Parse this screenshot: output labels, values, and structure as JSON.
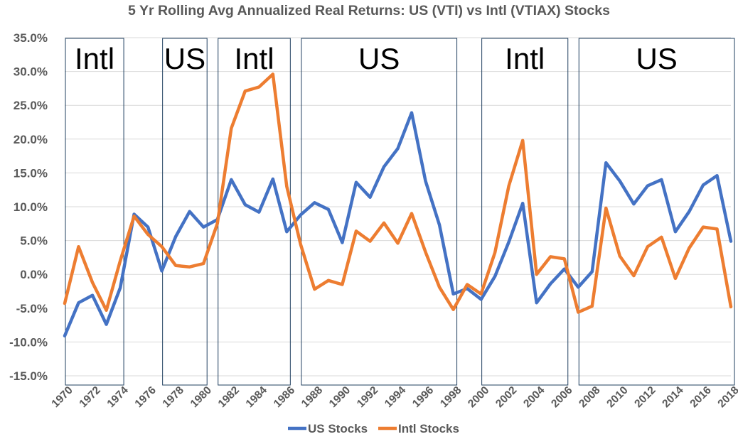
{
  "chart_data": {
    "type": "line",
    "title": "5 Yr Rolling Avg Annualized Real Returns: US (VTI) vs Intl (VTIAX) Stocks",
    "x": [
      1970,
      1971,
      1972,
      1973,
      1974,
      1975,
      1976,
      1977,
      1978,
      1979,
      1980,
      1981,
      1982,
      1983,
      1984,
      1985,
      1986,
      1987,
      1988,
      1989,
      1990,
      1991,
      1992,
      1993,
      1994,
      1995,
      1996,
      1997,
      1998,
      1999,
      2000,
      2001,
      2002,
      2003,
      2004,
      2005,
      2006,
      2007,
      2008,
      2009,
      2010,
      2011,
      2012,
      2013,
      2014,
      2015,
      2016,
      2017,
      2018
    ],
    "x_tick_labels": [
      "1970",
      "1972",
      "1974",
      "1976",
      "1978",
      "1980",
      "1982",
      "1984",
      "1986",
      "1988",
      "1990",
      "1992",
      "1994",
      "1996",
      "1998",
      "2000",
      "2002",
      "2004",
      "2006",
      "2008",
      "2010",
      "2012",
      "2014",
      "2016",
      "2018"
    ],
    "y_tick_labels": [
      "35.0%",
      "30.0%",
      "25.0%",
      "20.0%",
      "15.0%",
      "10.0%",
      "5.0%",
      "0.0%",
      "-5.0%",
      "-10.0%",
      "-15.0%"
    ],
    "ylim": [
      -15,
      35
    ],
    "grid": true,
    "legend_position": "bottom",
    "series": [
      {
        "name": "US Stocks",
        "color": "#4472C4",
        "values": [
          -9.1,
          -4.2,
          -3.1,
          -7.4,
          -2.0,
          8.9,
          7.0,
          0.5,
          5.6,
          9.3,
          7.0,
          8.1,
          14.0,
          10.3,
          9.2,
          14.1,
          6.3,
          8.8,
          10.6,
          9.6,
          4.7,
          13.6,
          11.4,
          15.9,
          18.6,
          23.9,
          13.8,
          7.3,
          -2.9,
          -2.1,
          -3.7,
          -0.3,
          4.8,
          10.5,
          -4.2,
          -1.4,
          0.8,
          -1.9,
          0.4,
          16.5,
          13.8,
          10.4,
          13.1,
          14.0,
          6.3,
          9.3,
          13.2,
          14.6,
          4.9
        ]
      },
      {
        "name": "Intl Stocks",
        "color": "#ED7D31",
        "values": [
          -4.3,
          4.1,
          -1.2,
          -5.3,
          2.0,
          8.6,
          5.9,
          4.1,
          1.3,
          1.1,
          1.6,
          7.5,
          21.6,
          27.1,
          27.7,
          29.6,
          13.0,
          4.4,
          -2.2,
          -0.9,
          -1.5,
          6.4,
          4.9,
          7.6,
          4.6,
          9.0,
          3.3,
          -1.9,
          -5.2,
          -1.5,
          -2.9,
          3.2,
          13.1,
          19.8,
          0.0,
          2.6,
          2.3,
          -5.6,
          -4.7,
          9.8,
          2.7,
          -0.2,
          4.1,
          5.5,
          -0.6,
          3.9,
          7.0,
          6.7,
          -4.8
        ]
      }
    ],
    "regions": [
      {
        "label": "Intl",
        "start": 1970,
        "end": 1974
      },
      {
        "label": "US",
        "start": 1977,
        "end": 1980
      },
      {
        "label": "Intl",
        "start": 1981,
        "end": 1986
      },
      {
        "label": "US",
        "start": 1987,
        "end": 1998
      },
      {
        "label": "Intl",
        "start": 2000,
        "end": 2006
      },
      {
        "label": "US",
        "start": 2007,
        "end": 2018
      }
    ]
  }
}
